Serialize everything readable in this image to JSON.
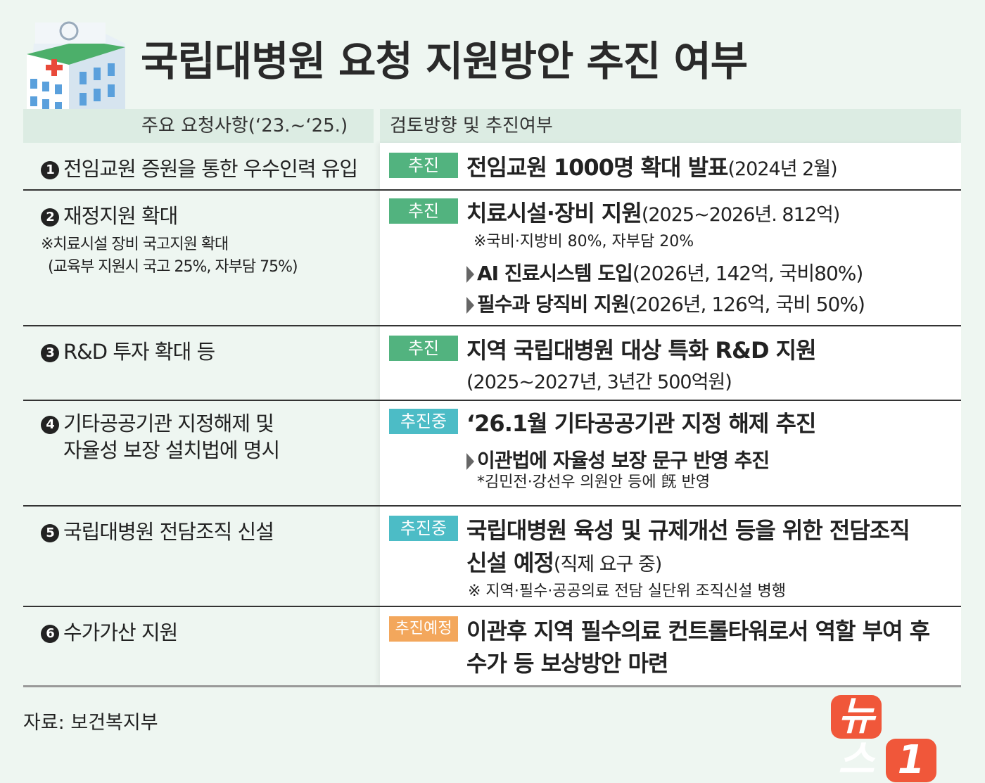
{
  "title": "국립대병원 요청 지원방안 추진 여부",
  "header": {
    "left": "주요  요청사항(‘23.~‘25.)",
    "right": "검토방향 및 추진여부"
  },
  "rows": [
    {
      "num": "1",
      "request": "전임교원 증원을 통한 우수인력 유입",
      "badge": "추진",
      "main": "전임교원 1000명 확대 발표",
      "main_paren": "(2024년 2월)"
    },
    {
      "num": "2",
      "request": "재정지원 확대",
      "request_note1": "※치료시설 장비 국고지원 확대",
      "request_note2": "(교육부 지원시 국고 25%, 자부담 75%)",
      "badge": "추진",
      "main": "치료시설·장비 지원",
      "main_paren": "(2025~2026년. 812억)",
      "note": "※국비·지방비 80%, 자부담 20%",
      "bullets": [
        {
          "bold": "AI 진료시스템 도입",
          "paren": "(2026년, 142억, 국비80%)"
        },
        {
          "bold": "필수과 당직비 지원",
          "paren": "(2026년, 126억, 국비 50%)"
        }
      ]
    },
    {
      "num": "3",
      "request": "R&D 투자 확대 등",
      "badge": "추진",
      "main": "지역 국립대병원 대상 특화 R&D 지원",
      "sub": "(2025~2027년, 3년간 500억원)"
    },
    {
      "num": "4",
      "request": "기타공공기관 지정해제 및",
      "request2": "자율성 보장 설치법에 명시",
      "badge": "추진중",
      "main": "‘26.1월 기타공공기관 지정 해제 추진",
      "bullets": [
        {
          "bold": "이관법에 자율성 보장 문구 반영 추진",
          "paren": ""
        }
      ],
      "note": "*김민전·강선우 의원안 등에 旣 반영"
    },
    {
      "num": "5",
      "request": "국립대병원 전담조직 신설",
      "badge": "추진중",
      "main": "국립대병원 육성 및 규제개선 등을 위한 전담조직",
      "main2": "신설 예정",
      "main2_paren": "(직제 요구 중)",
      "note": "※ 지역·필수·공공의료 전담 실단위 조직신설 병행"
    },
    {
      "num": "6",
      "request": "수가가산 지원",
      "badge": "추진예정",
      "main": "이관후 지역 필수의료 컨트롤타워로서 역할 부여 후",
      "main2": "수가 등 보상방안 마련"
    }
  ],
  "source": "자료: 보건복지부",
  "logo": {
    "text": "뉴스",
    "mark": "1"
  },
  "colors": {
    "bg": "#eef6f1",
    "go": "#52b37f",
    "ing": "#4cbcc6",
    "plan": "#f3a75c",
    "logo": "#f0573a"
  }
}
